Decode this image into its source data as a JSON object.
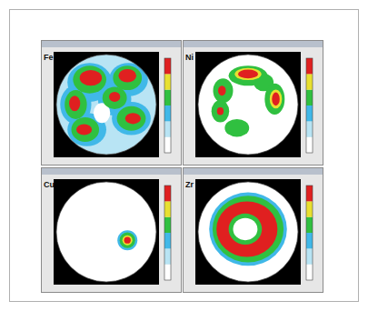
{
  "chart_data": [
    {
      "type": "pole_figure",
      "title": "Fe",
      "xlim": [
        -90,
        90
      ],
      "ylim": [
        -90,
        90
      ],
      "tick_labels": false,
      "levels": [
        0,
        1,
        2,
        3,
        4,
        5
      ],
      "colors": [
        "#ffffff",
        "#b8e4f4",
        "#40b8e8",
        "#30c040",
        "#e8e030",
        "#e02020"
      ],
      "blobs": [
        {
          "x": 0,
          "y": 0,
          "rx": 90,
          "ry": 90,
          "level": 1
        },
        {
          "x": -30,
          "y": 40,
          "rx": 40,
          "ry": 35,
          "level": 2
        },
        {
          "x": 40,
          "y": 45,
          "rx": 35,
          "ry": 30,
          "level": 2
        },
        {
          "x": -55,
          "y": 0,
          "rx": 28,
          "ry": 35,
          "level": 2
        },
        {
          "x": 15,
          "y": 10,
          "rx": 30,
          "ry": 30,
          "level": 2
        },
        {
          "x": -35,
          "y": -45,
          "rx": 35,
          "ry": 30,
          "level": 2
        },
        {
          "x": 45,
          "y": -25,
          "rx": 35,
          "ry": 30,
          "level": 2
        },
        {
          "x": -8,
          "y": -15,
          "rx": 15,
          "ry": 18,
          "level": 0
        },
        {
          "x": -30,
          "y": 45,
          "rx": 30,
          "ry": 25,
          "level": 3
        },
        {
          "x": 38,
          "y": 48,
          "rx": 26,
          "ry": 22,
          "level": 3
        },
        {
          "x": -55,
          "y": 0,
          "rx": 20,
          "ry": 26,
          "level": 3
        },
        {
          "x": 15,
          "y": 12,
          "rx": 22,
          "ry": 20,
          "level": 3
        },
        {
          "x": -38,
          "y": -45,
          "rx": 25,
          "ry": 22,
          "level": 3
        },
        {
          "x": 45,
          "y": -25,
          "rx": 26,
          "ry": 22,
          "level": 3
        },
        {
          "x": -28,
          "y": 48,
          "rx": 20,
          "ry": 14,
          "level": 5
        },
        {
          "x": 38,
          "y": 52,
          "rx": 16,
          "ry": 12,
          "level": 5
        },
        {
          "x": -57,
          "y": 2,
          "rx": 10,
          "ry": 14,
          "level": 5
        },
        {
          "x": 15,
          "y": 14,
          "rx": 10,
          "ry": 9,
          "level": 5
        },
        {
          "x": -40,
          "y": -45,
          "rx": 14,
          "ry": 10,
          "level": 5
        },
        {
          "x": 48,
          "y": -25,
          "rx": 14,
          "ry": 10,
          "level": 5
        }
      ]
    },
    {
      "type": "pole_figure",
      "title": "Ni",
      "xlim": [
        -90,
        90
      ],
      "ylim": [
        -90,
        90
      ],
      "tick_labels": false,
      "levels": [
        0,
        1,
        2,
        3,
        4,
        5
      ],
      "colors": [
        "#ffffff",
        "#b8e4f4",
        "#40b8e8",
        "#30c040",
        "#e8e030",
        "#e02020"
      ],
      "blobs": [
        {
          "x": 0,
          "y": 0,
          "rx": 90,
          "ry": 90,
          "level": 0
        },
        {
          "x": 0,
          "y": 52,
          "rx": 35,
          "ry": 18,
          "level": 3
        },
        {
          "x": 28,
          "y": 40,
          "rx": 18,
          "ry": 16,
          "level": 3
        },
        {
          "x": -45,
          "y": 25,
          "rx": 18,
          "ry": 22,
          "level": 3
        },
        {
          "x": -50,
          "y": -12,
          "rx": 16,
          "ry": 20,
          "level": 3
        },
        {
          "x": -20,
          "y": -42,
          "rx": 22,
          "ry": 16,
          "level": 3
        },
        {
          "x": 48,
          "y": 10,
          "rx": 18,
          "ry": 28,
          "level": 3
        },
        {
          "x": 0,
          "y": 55,
          "rx": 24,
          "ry": 11,
          "level": 4
        },
        {
          "x": 50,
          "y": 10,
          "rx": 11,
          "ry": 17,
          "level": 4
        },
        {
          "x": 0,
          "y": 55,
          "rx": 18,
          "ry": 8,
          "level": 5
        },
        {
          "x": -47,
          "y": 25,
          "rx": 7,
          "ry": 9,
          "level": 5
        },
        {
          "x": -50,
          "y": -12,
          "rx": 6,
          "ry": 7,
          "level": 5
        },
        {
          "x": 50,
          "y": 10,
          "rx": 7,
          "ry": 12,
          "level": 5
        }
      ]
    },
    {
      "type": "pole_figure",
      "title": "Cu",
      "xlim": [
        -90,
        90
      ],
      "ylim": [
        -90,
        90
      ],
      "tick_labels": false,
      "levels": [
        0,
        1,
        2,
        3,
        4,
        5
      ],
      "colors": [
        "#ffffff",
        "#b8e4f4",
        "#40b8e8",
        "#30c040",
        "#e8e030",
        "#e02020"
      ],
      "blobs": [
        {
          "x": 0,
          "y": 0,
          "rx": 90,
          "ry": 90,
          "level": 0
        },
        {
          "x": 38,
          "y": -15,
          "rx": 18,
          "ry": 18,
          "level": 2
        },
        {
          "x": 38,
          "y": -15,
          "rx": 14,
          "ry": 14,
          "level": 3
        },
        {
          "x": 38,
          "y": -15,
          "rx": 9,
          "ry": 9,
          "level": 4
        },
        {
          "x": 38,
          "y": -15,
          "rx": 6,
          "ry": 6,
          "level": 5
        }
      ]
    },
    {
      "type": "pole_figure",
      "title": "Zr",
      "xlim": [
        -90,
        90
      ],
      "ylim": [
        -90,
        90
      ],
      "tick_labels": false,
      "levels": [
        0,
        1,
        2,
        3,
        4,
        5
      ],
      "colors": [
        "#ffffff",
        "#b8e4f4",
        "#40b8e8",
        "#30c040",
        "#e8e030",
        "#e02020"
      ],
      "blobs": [
        {
          "x": 0,
          "y": 0,
          "rx": 90,
          "ry": 90,
          "level": 0
        },
        {
          "x": 0,
          "y": 5,
          "rx": 70,
          "ry": 66,
          "level": 2
        },
        {
          "x": 0,
          "y": 5,
          "rx": 64,
          "ry": 60,
          "level": 3
        },
        {
          "x": -2,
          "y": 5,
          "rx": 55,
          "ry": 50,
          "level": 5
        },
        {
          "x": -5,
          "y": 5,
          "rx": 30,
          "ry": 28,
          "level": 3
        },
        {
          "x": -5,
          "y": 5,
          "rx": 22,
          "ry": 20,
          "level": 0
        }
      ]
    }
  ]
}
